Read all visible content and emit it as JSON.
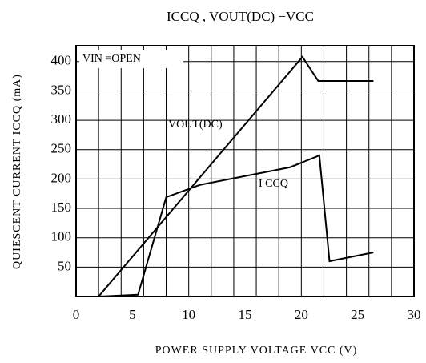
{
  "chart_data": {
    "type": "line",
    "title": "ICCQ , VOUT(DC) −VCC",
    "x_label": "POWER SUPPLY VOLTAGE VCC (V)",
    "y_label": "QUIESCENT CURRENT ICCQ (mA)",
    "annotations": [
      "VIN =OPEN",
      "VOUT(DC)",
      "I CCQ"
    ],
    "xlim": [
      0,
      30
    ],
    "xticks": [
      0,
      5,
      10,
      15,
      20,
      25,
      30
    ],
    "xgrid": [
      2,
      4,
      6,
      8,
      10,
      12,
      14,
      16,
      18,
      20,
      22,
      24,
      26,
      28
    ],
    "ylim": [
      0,
      427
    ],
    "yticks": [
      50,
      100,
      150,
      200,
      250,
      300,
      350,
      400
    ],
    "grid": true,
    "series": [
      {
        "name": "VOUT(DC)",
        "color": "#000000",
        "x": [
          0,
          2,
          20.1,
          21.5,
          26.4
        ],
        "values": [
          0,
          0,
          408,
          367,
          367
        ]
      },
      {
        "name": "I CCQ",
        "color": "#000000",
        "x": [
          0,
          2,
          5.5,
          8,
          11,
          19,
          21.6,
          22.5,
          26.4
        ],
        "values": [
          0,
          0,
          3,
          169,
          190,
          220,
          240,
          60,
          75
        ]
      }
    ]
  }
}
